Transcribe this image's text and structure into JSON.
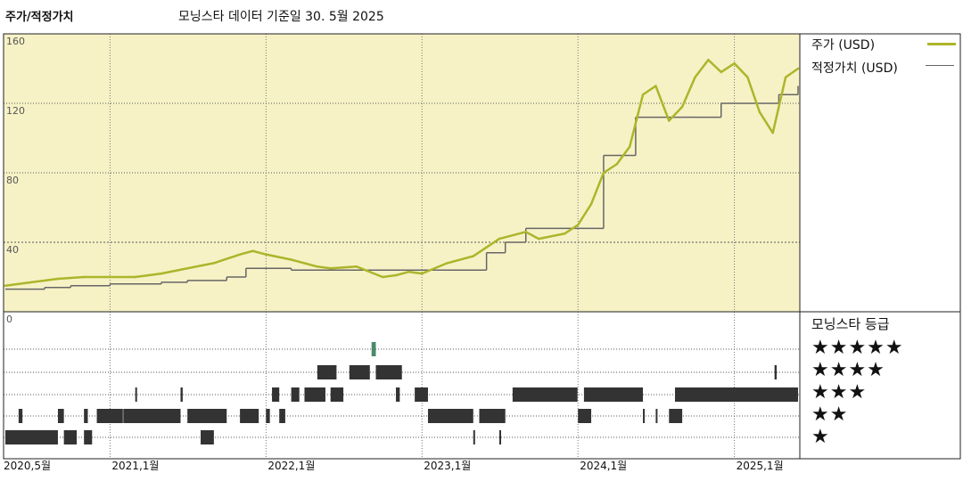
{
  "header": {
    "title_left": "주가/적정가치",
    "title_right": "모닝스타 데이터 기준일 30. 5월 2025"
  },
  "legend": {
    "price_label": "주가 (USD)",
    "fair_label": "적정가치 (USD)",
    "price_color": "#adb52a",
    "fair_color": "#666666"
  },
  "rating": {
    "title": "모닝스타 등급",
    "stars": [
      "★★★★★",
      "★★★★",
      "★★★",
      "★★",
      "★"
    ]
  },
  "chart_data": [
    {
      "type": "line",
      "background": "#f6f2c6",
      "grid": true,
      "ylim": [
        0,
        160
      ],
      "y_ticks": [
        "160",
        "120",
        "80",
        "40",
        "0"
      ],
      "x_ticks": [
        "2020,5월",
        "2021,1월",
        "2022,1월",
        "2023,1월",
        "2024,1월",
        "2025,1월"
      ],
      "series": [
        {
          "name": "주가 (USD)",
          "color": "#adb52a",
          "points": [
            [
              "2020-05-01",
              15
            ],
            [
              "2020-07-01",
              17
            ],
            [
              "2020-09-01",
              19
            ],
            [
              "2020-11-01",
              20
            ],
            [
              "2021-01-01",
              20
            ],
            [
              "2021-03-01",
              20
            ],
            [
              "2021-05-01",
              22
            ],
            [
              "2021-07-01",
              25
            ],
            [
              "2021-09-01",
              28
            ],
            [
              "2021-11-01",
              33
            ],
            [
              "2021-12-01",
              35
            ],
            [
              "2022-01-01",
              33
            ],
            [
              "2022-03-01",
              30
            ],
            [
              "2022-05-01",
              26
            ],
            [
              "2022-06-01",
              25
            ],
            [
              "2022-08-01",
              26
            ],
            [
              "2022-10-01",
              20
            ],
            [
              "2022-11-01",
              21
            ],
            [
              "2022-12-01",
              23
            ],
            [
              "2023-01-01",
              22
            ],
            [
              "2023-03-01",
              28
            ],
            [
              "2023-05-01",
              32
            ],
            [
              "2023-07-01",
              42
            ],
            [
              "2023-09-01",
              46
            ],
            [
              "2023-10-01",
              42
            ],
            [
              "2023-12-01",
              45
            ],
            [
              "2024-01-01",
              50
            ],
            [
              "2024-02-01",
              62
            ],
            [
              "2024-03-01",
              80
            ],
            [
              "2024-04-01",
              85
            ],
            [
              "2024-05-01",
              95
            ],
            [
              "2024-06-01",
              125
            ],
            [
              "2024-07-01",
              130
            ],
            [
              "2024-08-01",
              110
            ],
            [
              "2024-09-01",
              118
            ],
            [
              "2024-10-01",
              135
            ],
            [
              "2024-11-01",
              145
            ],
            [
              "2024-12-01",
              138
            ],
            [
              "2025-01-01",
              143
            ],
            [
              "2025-02-01",
              135
            ],
            [
              "2025-03-01",
              115
            ],
            [
              "2025-04-01",
              103
            ],
            [
              "2025-05-01",
              135
            ],
            [
              "2025-05-30",
              140
            ]
          ]
        },
        {
          "name": "적정가치 (USD)",
          "color": "#666666",
          "points": [
            [
              "2020-05-01",
              13
            ],
            [
              "2020-08-01",
              14
            ],
            [
              "2020-10-01",
              15
            ],
            [
              "2021-01-01",
              16
            ],
            [
              "2021-05-01",
              17
            ],
            [
              "2021-07-01",
              18
            ],
            [
              "2021-10-01",
              20
            ],
            [
              "2021-11-15",
              25
            ],
            [
              "2022-03-01",
              24
            ],
            [
              "2022-12-01",
              24
            ],
            [
              "2023-02-01",
              24
            ],
            [
              "2023-06-01",
              34
            ],
            [
              "2023-07-15",
              40
            ],
            [
              "2023-09-01",
              48
            ],
            [
              "2023-11-01",
              48
            ],
            [
              "2024-01-01",
              48
            ],
            [
              "2024-02-15",
              48
            ],
            [
              "2024-03-01",
              90
            ],
            [
              "2024-05-01",
              90
            ],
            [
              "2024-05-15",
              112
            ],
            [
              "2024-09-01",
              112
            ],
            [
              "2024-10-01",
              112
            ],
            [
              "2024-12-01",
              120
            ],
            [
              "2025-03-01",
              120
            ],
            [
              "2025-04-15",
              125
            ],
            [
              "2025-05-30",
              130
            ]
          ]
        }
      ]
    },
    {
      "type": "heatmap",
      "title": "모닝스타 등급",
      "rows": [
        5,
        4,
        3,
        2,
        1
      ],
      "ranges": {
        "5": [
          [
            "2022-09-05",
            "2022-09-15"
          ]
        ],
        "4": [
          [
            "2022-05-01",
            "2022-06-15"
          ],
          [
            "2022-07-15",
            "2022-09-01"
          ],
          [
            "2022-09-15",
            "2022-11-15"
          ],
          [
            "2025-04-05",
            "2025-04-10"
          ]
        ],
        "3": [
          [
            "2021-03-01",
            "2021-03-05"
          ],
          [
            "2021-06-15",
            "2021-06-20"
          ],
          [
            "2022-01-15",
            "2022-02-01"
          ],
          [
            "2022-03-01",
            "2022-03-20"
          ],
          [
            "2022-04-01",
            "2022-05-20"
          ],
          [
            "2022-06-01",
            "2022-07-01"
          ],
          [
            "2022-11-01",
            "2022-11-10"
          ],
          [
            "2022-12-15",
            "2023-01-15"
          ],
          [
            "2023-08-01",
            "2023-12-31"
          ],
          [
            "2024-01-15",
            "2024-06-01"
          ],
          [
            "2024-08-15",
            "2025-05-30"
          ]
        ],
        "2": [
          [
            "2020-06-01",
            "2020-06-10"
          ],
          [
            "2020-09-01",
            "2020-09-15"
          ],
          [
            "2020-11-01",
            "2020-11-10"
          ],
          [
            "2020-12-01",
            "2021-01-31"
          ],
          [
            "2021-02-01",
            "2021-06-15"
          ],
          [
            "2021-07-01",
            "2021-10-01"
          ],
          [
            "2021-11-01",
            "2021-12-15"
          ],
          [
            "2022-01-01",
            "2022-01-10"
          ],
          [
            "2022-02-01",
            "2022-02-15"
          ],
          [
            "2023-01-15",
            "2023-05-01"
          ],
          [
            "2023-05-15",
            "2023-07-15"
          ],
          [
            "2024-01-01",
            "2024-02-01"
          ],
          [
            "2024-06-01",
            "2024-06-05"
          ],
          [
            "2024-07-01",
            "2024-07-05"
          ],
          [
            "2024-08-01",
            "2024-09-01"
          ]
        ],
        "1": [
          [
            "2020-05-01",
            "2020-09-01"
          ],
          [
            "2020-09-15",
            "2020-10-15"
          ],
          [
            "2020-11-01",
            "2020-11-20"
          ],
          [
            "2021-08-01",
            "2021-09-01"
          ],
          [
            "2023-05-01",
            "2023-05-05"
          ],
          [
            "2023-07-01",
            "2023-07-05"
          ]
        ]
      }
    }
  ]
}
